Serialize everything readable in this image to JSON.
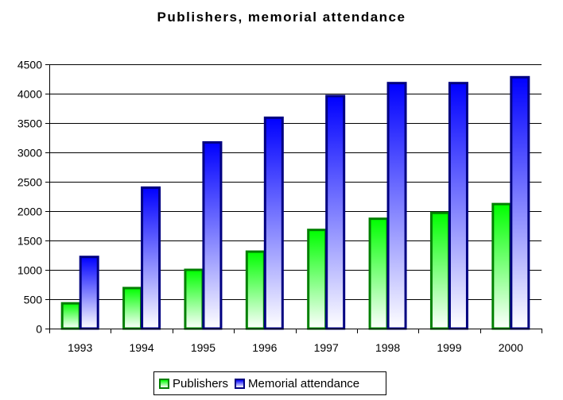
{
  "chart_data": {
    "type": "bar",
    "title": "Publishers, memorial attendance",
    "categories": [
      "1993",
      "1994",
      "1995",
      "1996",
      "1997",
      "1998",
      "1999",
      "2000"
    ],
    "series": [
      {
        "name": "Publishers",
        "values": [
          430,
          690,
          1000,
          1310,
          1680,
          1870,
          1970,
          2120
        ],
        "fill": "#00ff00",
        "stroke": "#008000"
      },
      {
        "name": "Memorial attendance",
        "values": [
          1220,
          2400,
          3170,
          3590,
          3960,
          4180,
          4180,
          4280
        ],
        "fill": "#0000ff",
        "stroke": "#000080"
      }
    ],
    "ylim": [
      0,
      4500
    ],
    "yticks": [
      0,
      500,
      1000,
      1500,
      2000,
      2500,
      3000,
      3500,
      4000,
      4500
    ],
    "grid": true,
    "legend_position": "bottom"
  }
}
